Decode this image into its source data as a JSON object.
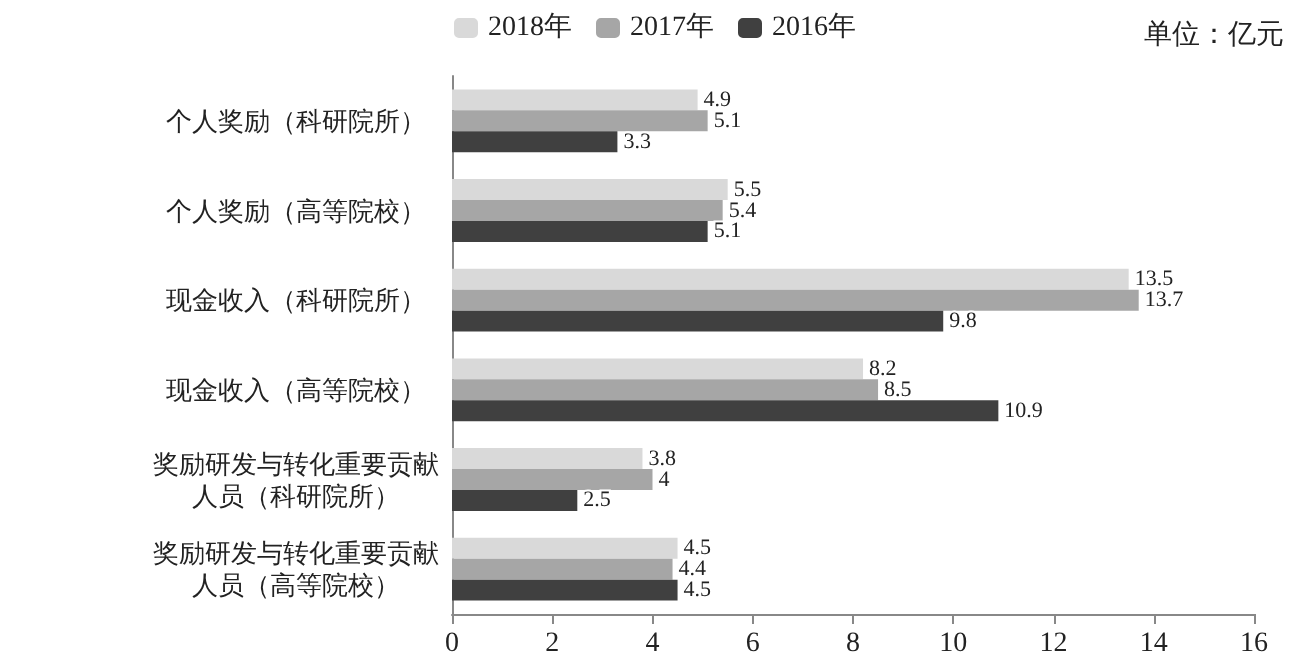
{
  "chart_data": {
    "type": "bar",
    "orientation": "horizontal",
    "categories": [
      "个人奖励（科研院所）",
      "个人奖励（高等院校）",
      "现金收入（科研院所）",
      "现金收入（高等院校）",
      "奖励研发与转化重要贡献人员（科研院所）",
      "奖励研发与转化重要贡献人员（高等院校）"
    ],
    "series": [
      {
        "name": "2018年",
        "color": "#d9d9d9",
        "values": [
          4.9,
          5.5,
          13.5,
          8.2,
          3.8,
          4.5
        ]
      },
      {
        "name": "2017年",
        "color": "#a6a6a6",
        "values": [
          5.1,
          5.4,
          13.7,
          8.5,
          4,
          4.4
        ]
      },
      {
        "name": "2016年",
        "color": "#404040",
        "values": [
          3.3,
          5.1,
          9.8,
          10.9,
          2.5,
          4.5
        ]
      }
    ],
    "xlim": [
      0,
      16
    ],
    "xticks": [
      0,
      2,
      4,
      6,
      8,
      10,
      12,
      14,
      16
    ],
    "annotations": [
      "单位：亿元"
    ],
    "data_labels": true,
    "legend": "top",
    "grid": false
  }
}
